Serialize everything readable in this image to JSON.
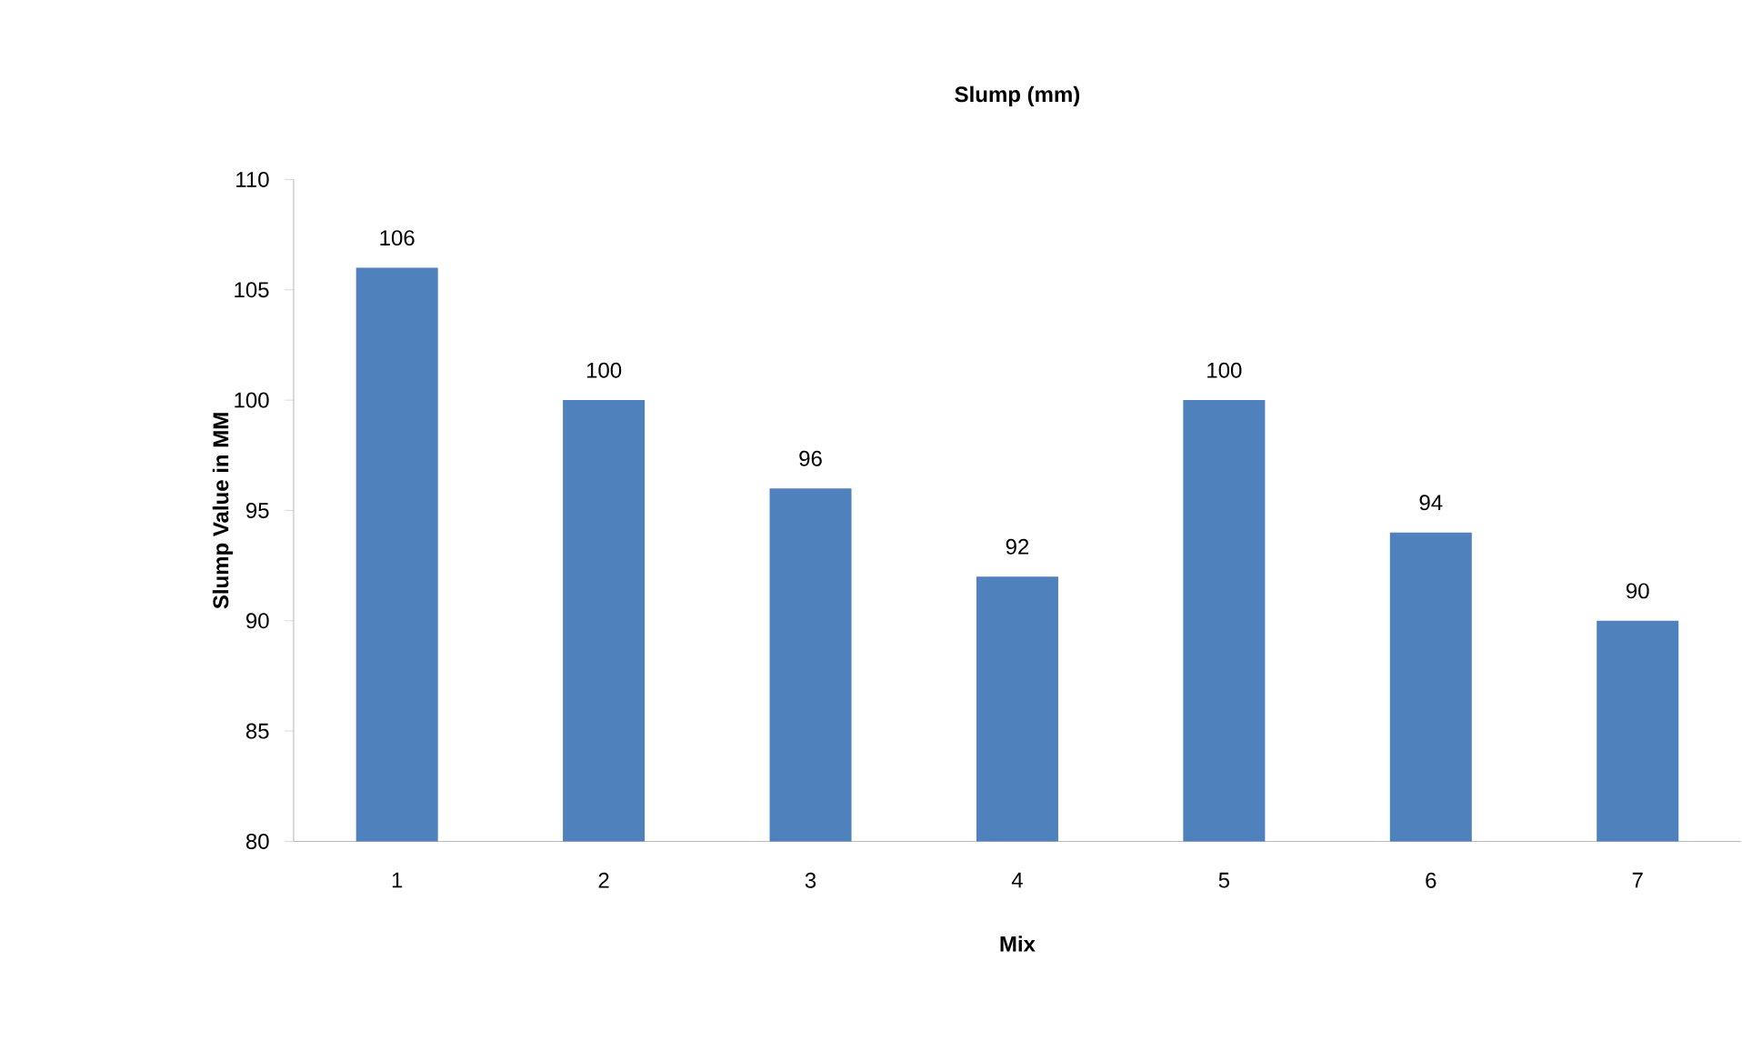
{
  "chart_data": {
    "type": "bar",
    "title": "Slump (mm)",
    "xlabel": "Mix",
    "ylabel": "Slump Value in MM",
    "categories": [
      "1",
      "2",
      "3",
      "4",
      "5",
      "6",
      "7"
    ],
    "values": [
      106,
      100,
      96,
      92,
      100,
      94,
      90
    ],
    "color": "#4f81bd",
    "ylim": [
      80,
      110
    ],
    "yticks": [
      80,
      85,
      90,
      95,
      100,
      105,
      110
    ],
    "data_labels": true
  }
}
